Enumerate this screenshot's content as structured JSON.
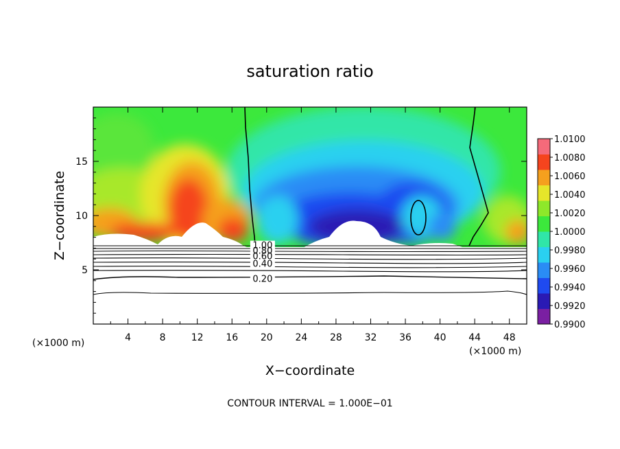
{
  "chart_data": {
    "type": "contour",
    "title": "saturation ratio",
    "xlabel": "X−coordinate",
    "ylabel": "Z−coordinate",
    "x_unit": "(×1000 m)",
    "y_unit": "(×1000 m)",
    "xlim": [
      0,
      50
    ],
    "ylim": [
      0,
      20
    ],
    "x_ticks": [
      4,
      8,
      12,
      16,
      20,
      24,
      28,
      32,
      36,
      40,
      44,
      48
    ],
    "x_tick_labels": [
      "4",
      "8",
      "12",
      "16",
      "20",
      "24",
      "28",
      "32",
      "36",
      "40",
      "44",
      "48"
    ],
    "y_ticks": [
      5,
      10,
      15
    ],
    "y_tick_labels": [
      "5",
      "10",
      "15"
    ],
    "colorbar": {
      "min": 0.99,
      "max": 1.01,
      "labels": [
        "1.0100",
        "1.0080",
        "1.0060",
        "1.0040",
        "1.0020",
        "1.0000",
        "0.9980",
        "0.9960",
        "0.9940",
        "0.9920",
        "0.9900"
      ],
      "colors": [
        "#7a1fa2",
        "#2a1ab4",
        "#1f4af0",
        "#2a8cf5",
        "#2ad0f0",
        "#30e6a8",
        "#3ce83c",
        "#8ee82a",
        "#e6e62a",
        "#f5a01e",
        "#f5441e",
        "#f56a7a"
      ]
    },
    "contour_labels": [
      {
        "text": "1.00",
        "x": 17.0,
        "y": 7.3
      },
      {
        "text": "0.80",
        "x": 17.0,
        "y": 6.8
      },
      {
        "text": "0.60",
        "x": 17.0,
        "y": 6.3
      },
      {
        "text": "0.40",
        "x": 17.0,
        "y": 5.6
      },
      {
        "text": "0.20",
        "x": 17.0,
        "y": 4.2
      }
    ],
    "contour_interval_note": "CONTOUR INTERVAL = 1.000E−01"
  }
}
